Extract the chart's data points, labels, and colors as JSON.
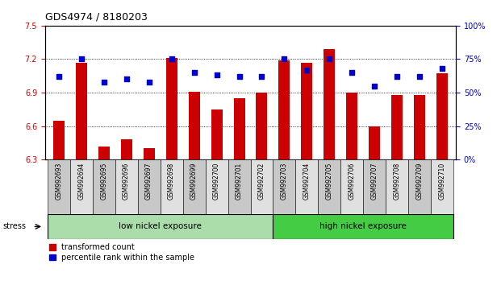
{
  "title": "GDS4974 / 8180203",
  "samples": [
    "GSM992693",
    "GSM992694",
    "GSM992695",
    "GSM992696",
    "GSM992697",
    "GSM992698",
    "GSM992699",
    "GSM992700",
    "GSM992701",
    "GSM992702",
    "GSM992703",
    "GSM992704",
    "GSM992705",
    "GSM992706",
    "GSM992707",
    "GSM992708",
    "GSM992709",
    "GSM992710"
  ],
  "bar_values": [
    6.65,
    7.17,
    6.42,
    6.48,
    6.4,
    7.21,
    6.91,
    6.75,
    6.85,
    6.9,
    7.19,
    7.17,
    7.29,
    6.9,
    6.6,
    6.88,
    6.88,
    7.07
  ],
  "percentile_values": [
    62,
    75,
    58,
    60,
    58,
    75,
    65,
    63,
    62,
    62,
    75,
    67,
    75,
    65,
    55,
    62,
    62,
    68
  ],
  "bar_base": 6.3,
  "ylim_left": [
    6.3,
    7.5
  ],
  "ylim_right": [
    0,
    100
  ],
  "yticks_left": [
    6.3,
    6.6,
    6.9,
    7.2,
    7.5
  ],
  "ytick_labels_left": [
    "6.3",
    "6.6",
    "6.9",
    "7.2",
    "7.5"
  ],
  "yticks_right": [
    0,
    25,
    50,
    75,
    100
  ],
  "ytick_labels_right": [
    "0%",
    "25%",
    "50%",
    "75%",
    "100%"
  ],
  "bar_color": "#CC0000",
  "dot_color": "#0000CC",
  "grid_yticks": [
    6.6,
    6.9,
    7.2
  ],
  "low_count": 10,
  "high_count": 8,
  "low_label": "low nickel exposure",
  "high_label": "high nickel exposure",
  "low_color": "#aaddaa",
  "high_color": "#44cc44",
  "stress_label": "stress",
  "legend_bar_label": "transformed count",
  "legend_dot_label": "percentile rank within the sample",
  "bar_width": 0.5,
  "title_fontsize": 9,
  "axis_label_color_left": "#CC0000",
  "axis_label_color_right": "#0000CC"
}
